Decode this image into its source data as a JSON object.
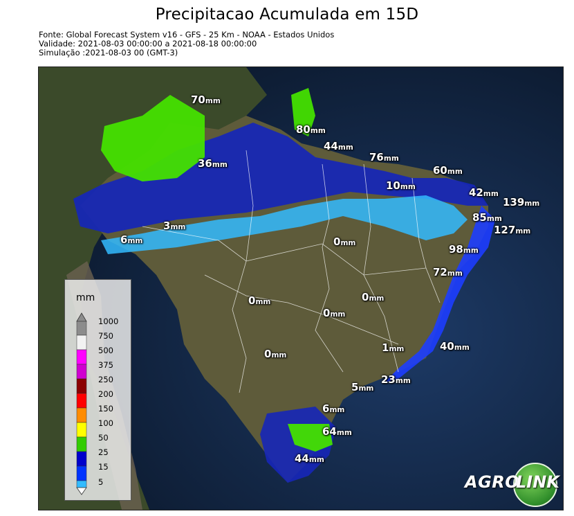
{
  "title": "Precipitacao Acumulada em 15D",
  "meta": {
    "source": "Fonte: Global Forecast System v16 - GFS - 25 Km - NOAA - Estados Unidos",
    "validity": "Validade: 2021-08-03 00:00:00 a 2021-08-18 00:00:00",
    "simulation": "Simulação :2021-08-03 00 (GMT-3)"
  },
  "legend": {
    "title": "mm",
    "ticks": [
      "1000",
      "750",
      "500",
      "375",
      "250",
      "200",
      "150",
      "100",
      "50",
      "25",
      "15",
      "5"
    ],
    "colors": [
      "#8c8c8c",
      "#f2f2f2",
      "#ff00ff",
      "#d000d0",
      "#8b0000",
      "#ff0000",
      "#ff8c00",
      "#ffff00",
      "#33cc00",
      "#0000cc",
      "#0033ff",
      "#33bbff"
    ]
  },
  "map_labels": [
    {
      "value": "70",
      "unit": "mm"
    },
    {
      "value": "80",
      "unit": "mm"
    },
    {
      "value": "44",
      "unit": "mm"
    },
    {
      "value": "76",
      "unit": "mm"
    },
    {
      "value": "36",
      "unit": "mm"
    },
    {
      "value": "60",
      "unit": "mm"
    },
    {
      "value": "10",
      "unit": "mm"
    },
    {
      "value": "42",
      "unit": "mm"
    },
    {
      "value": "139",
      "unit": "mm"
    },
    {
      "value": "85",
      "unit": "mm"
    },
    {
      "value": "127",
      "unit": "mm"
    },
    {
      "value": "3",
      "unit": "mm"
    },
    {
      "value": "6",
      "unit": "mm"
    },
    {
      "value": "0",
      "unit": "mm"
    },
    {
      "value": "98",
      "unit": "mm"
    },
    {
      "value": "72",
      "unit": "mm"
    },
    {
      "value": "0",
      "unit": "mm"
    },
    {
      "value": "0",
      "unit": "mm"
    },
    {
      "value": "0",
      "unit": "mm"
    },
    {
      "value": "1",
      "unit": "mm"
    },
    {
      "value": "40",
      "unit": "mm"
    },
    {
      "value": "0",
      "unit": "mm"
    },
    {
      "value": "23",
      "unit": "mm"
    },
    {
      "value": "5",
      "unit": "mm"
    },
    {
      "value": "6",
      "unit": "mm"
    },
    {
      "value": "64",
      "unit": "mm"
    },
    {
      "value": "44",
      "unit": "mm"
    }
  ],
  "logo": {
    "left": "AGRO",
    "right": "LINK"
  }
}
